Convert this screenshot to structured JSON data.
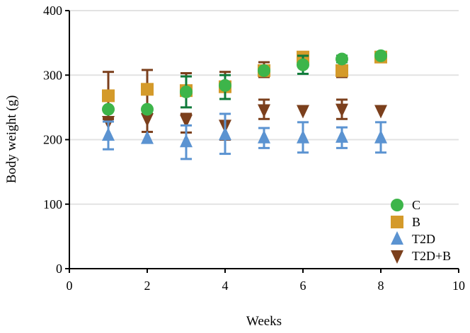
{
  "chart_data": {
    "type": "scatter",
    "xlabel": "Weeks",
    "ylabel": "Body weight (g)",
    "xlim": [
      0,
      10
    ],
    "ylim": [
      0,
      400
    ],
    "xticks": [
      0,
      2,
      4,
      6,
      8,
      10
    ],
    "yticks": [
      0,
      100,
      200,
      300,
      400
    ],
    "grid": "horizontal",
    "legend": "bottom-right",
    "x": [
      1,
      2,
      3,
      4,
      5,
      6,
      7,
      8
    ],
    "series": [
      {
        "name": "C",
        "marker": "circle",
        "color": "#3db54a",
        "errcolor": "#0f7a3a",
        "values": [
          247,
          247,
          274,
          284,
          307,
          316,
          325,
          330
        ],
        "lower": [
          247,
          247,
          250,
          263,
          307,
          302,
          320,
          330
        ],
        "upper": [
          247,
          247,
          298,
          300,
          307,
          330,
          330,
          330
        ]
      },
      {
        "name": "B",
        "marker": "square",
        "color": "#d49a2a",
        "errcolor": "#7b3f1c",
        "values": [
          268,
          278,
          276,
          282,
          307,
          328,
          307,
          328
        ],
        "lower": [
          232,
          248,
          276,
          282,
          297,
          328,
          297,
          328
        ],
        "upper": [
          305,
          308,
          303,
          305,
          320,
          330,
          307,
          328
        ]
      },
      {
        "name": "T2D",
        "marker": "triangle-up",
        "color": "#5b93d1",
        "errcolor": "#5b93d1",
        "values": [
          207,
          202,
          197,
          208,
          203,
          203,
          204,
          203
        ],
        "lower": [
          185,
          202,
          170,
          178,
          187,
          180,
          187,
          180
        ],
        "upper": [
          228,
          202,
          222,
          240,
          218,
          227,
          219,
          227
        ]
      },
      {
        "name": "T2D+B",
        "marker": "triangle-down",
        "color": "#7b3f1c",
        "errcolor": "#7b3f1c",
        "values": [
          228,
          232,
          230,
          222,
          246,
          245,
          247,
          245
        ],
        "lower": [
          228,
          212,
          211,
          200,
          232,
          245,
          232,
          245
        ],
        "upper": [
          232,
          240,
          240,
          240,
          262,
          245,
          262,
          245
        ]
      }
    ]
  }
}
